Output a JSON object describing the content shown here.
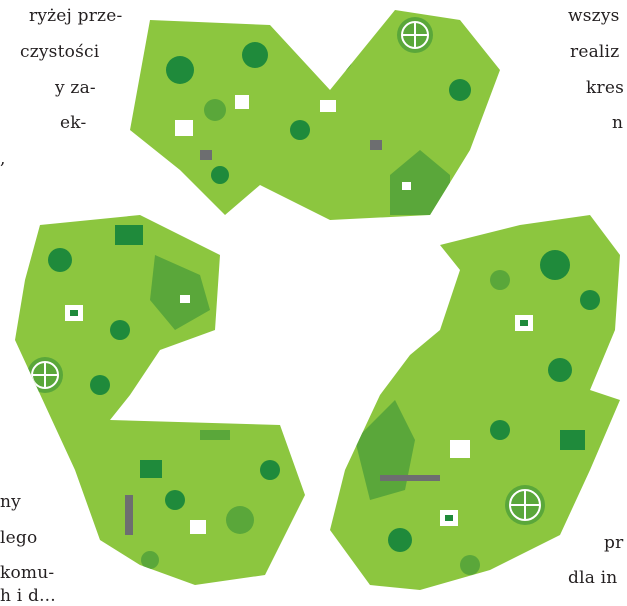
{
  "left_top_column": [
    "ryżej prze-",
    "czystości",
    "y za-",
    "ek-",
    ","
  ],
  "right_top_column": [
    "wszys",
    "realiz",
    "kres",
    "n"
  ],
  "left_bottom_column": [
    "ny",
    "lego",
    "komu-",
    "h i d..."
  ],
  "right_bottom_column": [
    "pr",
    "dla in"
  ],
  "colors": {
    "green_light": "#8cc63f",
    "green_mid": "#5aa73a",
    "green_dark": "#1f8a3b",
    "gray": "#6d6e70"
  }
}
